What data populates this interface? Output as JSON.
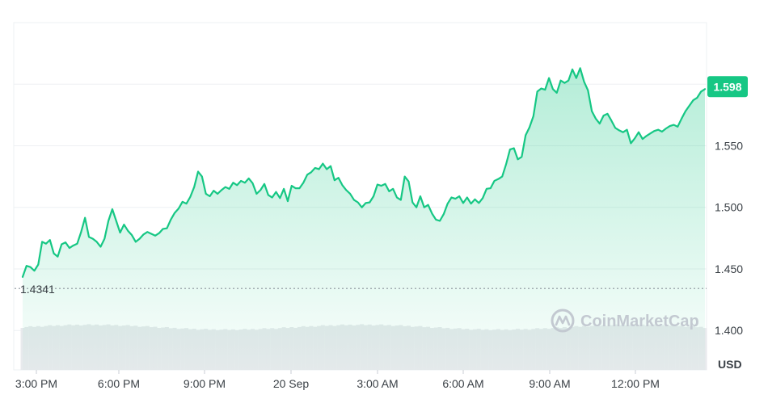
{
  "chart_data": {
    "type": "area",
    "currency": "USD",
    "watermark": "CoinMarketCap",
    "open_value": "1.4341",
    "current_value": "1.598",
    "y_ticks": [
      "1.400",
      "1.450",
      "1.500",
      "1.550"
    ],
    "x_ticks": [
      "3:00 PM",
      "6:00 PM",
      "9:00 PM",
      "20 Sep",
      "3:00 AM",
      "6:00 AM",
      "9:00 AM",
      "12:00 PM"
    ],
    "ylim": [
      1.368,
      1.65
    ],
    "grid": true,
    "colors": {
      "line": "#16c784",
      "tag": "#16c784",
      "volume": "#e8eaed",
      "grid": "#eef0f3"
    },
    "series": [
      {
        "x_start": "14:20",
        "x_end": "13:55",
        "values": [
          1.4435,
          1.4525,
          1.4515,
          1.4485,
          1.4535,
          1.472,
          1.4705,
          1.4735,
          1.4625,
          1.46,
          1.47,
          1.4715,
          1.467,
          1.469,
          1.4705,
          1.48,
          1.4915,
          1.476,
          1.4745,
          1.472,
          1.468,
          1.4745,
          1.489,
          1.4985,
          1.489,
          1.4795,
          1.486,
          1.481,
          1.4775,
          1.472,
          1.4745,
          1.478,
          1.48,
          1.4785,
          1.477,
          1.479,
          1.4825,
          1.483,
          1.49,
          1.4955,
          1.499,
          1.5045,
          1.503,
          1.5085,
          1.5165,
          1.529,
          1.525,
          1.511,
          1.509,
          1.5135,
          1.511,
          1.514,
          1.5165,
          1.515,
          1.52,
          1.518,
          1.5215,
          1.52,
          1.5235,
          1.5195,
          1.511,
          1.514,
          1.519,
          1.51,
          1.508,
          1.5125,
          1.5075,
          1.515,
          1.505,
          1.5175,
          1.5155,
          1.5155,
          1.52,
          1.5265,
          1.5285,
          1.532,
          1.531,
          1.5355,
          1.531,
          1.5335,
          1.522,
          1.524,
          1.518,
          1.514,
          1.511,
          1.506,
          1.504,
          1.5,
          1.5035,
          1.504,
          1.509,
          1.5185,
          1.5175,
          1.519,
          1.513,
          1.515,
          1.508,
          1.506,
          1.525,
          1.521,
          1.504,
          1.5,
          1.509,
          1.5,
          1.502,
          1.495,
          1.49,
          1.489,
          1.4945,
          1.503,
          1.508,
          1.507,
          1.509,
          1.5035,
          1.508,
          1.503,
          1.5065,
          1.5035,
          1.5075,
          1.515,
          1.5155,
          1.5215,
          1.523,
          1.525,
          1.535,
          1.547,
          1.548,
          1.539,
          1.541,
          1.5585,
          1.565,
          1.574,
          1.594,
          1.5965,
          1.5955,
          1.605,
          1.596,
          1.593,
          1.603,
          1.601,
          1.603,
          1.612,
          1.605,
          1.613,
          1.602,
          1.595,
          1.578,
          1.572,
          1.568,
          1.5745,
          1.576,
          1.5705,
          1.5645,
          1.5625,
          1.561,
          1.563,
          1.552,
          1.556,
          1.561,
          1.5555,
          1.558,
          1.56,
          1.562,
          1.563,
          1.5615,
          1.564,
          1.566,
          1.567,
          1.5655,
          1.572,
          1.578,
          1.5825,
          1.587,
          1.589,
          1.594,
          1.596
        ]
      }
    ]
  }
}
